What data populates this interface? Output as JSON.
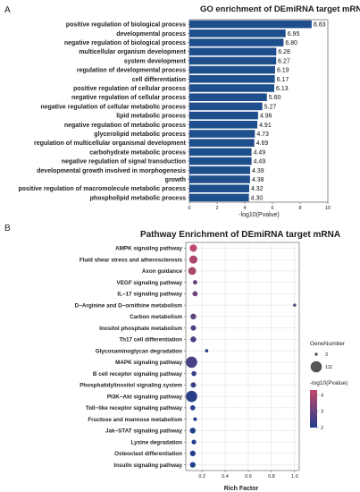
{
  "figure": {
    "panel_a_label": "A",
    "panel_b_label": "B"
  },
  "chart_data": [
    {
      "type": "bar",
      "orientation": "horizontal",
      "title": "GO enrichment of DEmiRNA target mRNA",
      "xlabel": "-log10(Pvalue)",
      "ylabel": "",
      "xlim": [
        0,
        10
      ],
      "xticks": [
        "0",
        "2",
        "4",
        "6",
        "8",
        "10"
      ],
      "bar_color": "#1f4e8c",
      "categories": [
        "positive regulation of biological process",
        "developmental process",
        "negative regulation of biological process",
        "multicellular organism development",
        "system development",
        "regulation of developmental process",
        "cell differentiation",
        "positive regulation of cellular process",
        "negative regulation of cellular process",
        "negative regulation of cellular metabolic process",
        "lipid metabolic process",
        "negative regulation of metabolic process",
        "glycerolipid metabolic process",
        "regulation of multicellular organismal development",
        "carbohydrate metabolic process",
        "negative regulation of signal transduction",
        "developmental growth involved in morphogenesis",
        "growth",
        "positive regulation of macromolecule metabolic process",
        "phospholipid metabolic process"
      ],
      "values": [
        8.83,
        6.95,
        6.8,
        6.28,
        6.27,
        6.19,
        6.17,
        6.13,
        5.6,
        5.27,
        4.96,
        4.91,
        4.73,
        4.69,
        4.49,
        4.49,
        4.39,
        4.38,
        4.32,
        4.3
      ],
      "value_labels": [
        "8.83",
        "6.95",
        "6.80",
        "6.28",
        "6.27",
        "6.19",
        "6.17",
        "6.13",
        "5.60",
        "5.27",
        "4.96",
        "4.91",
        "4.73",
        "4.69",
        "4.49",
        "4.49",
        "4.39",
        "4.38",
        "4.32",
        "4.30"
      ],
      "grid": false
    },
    {
      "type": "scatter",
      "subtype": "bubble",
      "title": "Pathway Enrichment of DEmiRNA target mRNA",
      "xlabel": "Rich Factor",
      "ylabel": "",
      "xlim": [
        0.06,
        1.04
      ],
      "xticks": [
        "0.2",
        "0.4",
        "0.6",
        "0.8",
        "1.0"
      ],
      "grid": true,
      "categories": [
        "AMPK signaling pathway",
        "Fluid shear stress and atherosclerosis",
        "Axon guidance",
        "VEGF signaling pathway",
        "IL−17 signaling pathway",
        "D−Arginine and D−ornithine metabolism",
        "Carbon metabolism",
        "Inositol phosphate metabolism",
        "Th17 cell differentiation",
        "Glycosaminoglycan degradation",
        "MAPK signaling pathway",
        "B cell receptor signaling pathway",
        "Phosphatidylinositol signaling system",
        "PI3K−Akt signaling pathway",
        "Toll−like receptor signaling pathway",
        "Fructose and mannose metabolism",
        "Jak−STAT signaling pathway",
        "Lysine degradation",
        "Osteoclast differentiation",
        "Insulin signaling pathway"
      ],
      "rich_factor": [
        0.125,
        0.125,
        0.115,
        0.14,
        0.14,
        1.0,
        0.125,
        0.125,
        0.125,
        0.24,
        0.11,
        0.13,
        0.125,
        0.11,
        0.12,
        0.14,
        0.12,
        0.13,
        0.12,
        0.12
      ],
      "gene_number": [
        40,
        52,
        48,
        10,
        16,
        3,
        22,
        18,
        22,
        4,
        111,
        14,
        18,
        111,
        15,
        6,
        22,
        12,
        20,
        20
      ],
      "neg_log10_pvalue": [
        4.3,
        4.0,
        3.9,
        3.0,
        3.1,
        2.7,
        2.9,
        2.6,
        2.5,
        2.1,
        2.5,
        2.3,
        2.3,
        2.1,
        2.1,
        2.0,
        2.0,
        2.0,
        2.0,
        2.0
      ],
      "legend": {
        "size_title": "GeneNumber",
        "size_values": [
          "3",
          "111"
        ],
        "color_title": "-log10(Pvalue)",
        "color_ticks": [
          "4",
          "3",
          "2"
        ],
        "color_range": [
          2,
          4.3
        ],
        "color_low": "#233e8b",
        "color_high": "#c04a6a",
        "placement": "right"
      }
    }
  ]
}
